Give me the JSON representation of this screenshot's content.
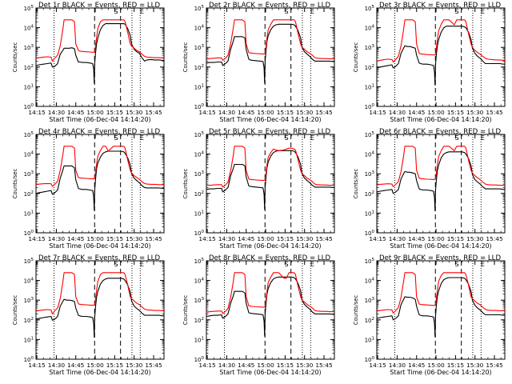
{
  "figure": {
    "background": "#ffffff",
    "axis_color": "#000000"
  },
  "colors": {
    "events": "#000000",
    "lld": "#ff0000"
  },
  "panels": [
    {
      "title": "Det 1r BLACK = Events, RED = LLD",
      "ylabel": "Counts/sec",
      "xlabel": "Start Time (06-Dec-04 14:14:20)"
    },
    {
      "title": "Det 2r BLACK = Events, RED = LLD",
      "ylabel": "Counts/sec",
      "xlabel": "Start Time (06-Dec-04 14:14:20)"
    },
    {
      "title": "Det 3r BLACK = Events, RED = LLD",
      "ylabel": "Counts/sec",
      "xlabel": "Start Time (06-Dec-04 14:14:20)"
    },
    {
      "title": "Det 4r BLACK = Events, RED = LLD",
      "ylabel": "Counts/sec",
      "xlabel": "Start Time (06-Dec-04 14:14:20)"
    },
    {
      "title": "Det 5r BLACK = Events, RED = LLD",
      "ylabel": "Counts/sec",
      "xlabel": "Start Time (06-Dec-04 14:14:20)"
    },
    {
      "title": "Det 6r BLACK = Events, RED = LLD",
      "ylabel": "Counts/sec",
      "xlabel": "Start Time (06-Dec-04 14:14:20)"
    },
    {
      "title": "Det 7r BLACK = Events, RED = LLD",
      "ylabel": "Counts/sec",
      "xlabel": "Start Time (06-Dec-04 14:14:20)"
    },
    {
      "title": "Det 8r BLACK = Events, RED = LLD",
      "ylabel": "Counts/sec",
      "xlabel": "Start Time (06-Dec-04 14:14:20)"
    },
    {
      "title": "Det 9r BLACK = Events, RED = LLD",
      "ylabel": "Counts/sec",
      "xlabel": "Start Time (06-Dec-04 14:14:20)"
    }
  ],
  "chart_data": {
    "type": "line",
    "xticks": [
      "14:15",
      "14:30",
      "14:45",
      "15:00",
      "15:15",
      "15:30",
      "15:45"
    ],
    "xtick_minutes": [
      15,
      30,
      45,
      60,
      75,
      90,
      105
    ],
    "xlim_minutes": [
      14.33,
      113
    ],
    "yscale": "log",
    "ylim": [
      1,
      100000
    ],
    "ytick_exponents": [
      0,
      1,
      2,
      3,
      4,
      5
    ],
    "y_minor_ticks": true,
    "marker_labels": {
      "s": "S",
      "e": "E"
    },
    "vlines": [
      {
        "x": 28.2,
        "style": "dotted"
      },
      {
        "x": 59.5,
        "style": "dashed"
      },
      {
        "x": 79.5,
        "style": "dashed"
      },
      {
        "x": 88.3,
        "style": "dotted"
      },
      {
        "x": 94.7,
        "style": "dotted"
      }
    ],
    "s_marker_x": 76.0,
    "e_marker_x": 96.0,
    "series": [
      {
        "name": "Events",
        "color": "#000000"
      },
      {
        "name": "LLD",
        "color": "#ff0000"
      }
    ],
    "common_x": [
      14.3,
      17,
      20,
      23,
      26,
      27,
      29,
      31,
      33,
      35,
      36,
      38,
      40,
      42,
      44,
      45,
      47,
      48,
      50,
      53,
      56,
      58,
      58.8,
      59.2,
      59.6,
      60.2,
      61,
      62,
      64,
      66,
      68,
      70,
      74,
      76,
      78,
      80,
      82,
      83,
      85,
      87,
      88,
      90,
      92,
      94,
      96,
      98,
      100,
      103,
      106,
      109,
      112,
      113
    ],
    "panels": [
      {
        "events": [
          120,
          130,
          140,
          150,
          160,
          100,
          110,
          150,
          450,
          700,
          900,
          900,
          900,
          950,
          850,
          400,
          180,
          180,
          170,
          170,
          160,
          150,
          80,
          15,
          160,
          500,
          1500,
          3000,
          8000,
          13000,
          16000,
          16000,
          16000,
          16000,
          16000,
          16000,
          16000,
          15000,
          9000,
          4000,
          1500,
          800,
          600,
          500,
          300,
          200,
          230,
          240,
          230,
          230,
          220,
          200
        ],
        "lld": [
          280,
          300,
          320,
          330,
          320,
          200,
          300,
          400,
          1200,
          8000,
          25000,
          25000,
          25000,
          25000,
          20000,
          1500,
          700,
          650,
          620,
          600,
          580,
          560,
          580,
          560,
          600,
          1200,
          3000,
          9000,
          20000,
          25000,
          25000,
          25000,
          25000,
          25000,
          25000,
          25000,
          25000,
          20000,
          6000,
          1500,
          1200,
          900,
          700,
          600,
          450,
          350,
          320,
          310,
          300,
          300,
          290,
          280
        ]
      },
      {
        "events": [
          160,
          170,
          170,
          180,
          180,
          120,
          150,
          200,
          800,
          2000,
          3500,
          3500,
          3500,
          3500,
          3000,
          800,
          250,
          230,
          220,
          210,
          200,
          190,
          90,
          15,
          200,
          600,
          2000,
          4000,
          8000,
          12000,
          14000,
          15000,
          15000,
          15000,
          15000,
          15000,
          14000,
          12000,
          7000,
          3000,
          1000,
          600,
          450,
          350,
          250,
          200,
          200,
          200,
          200,
          200,
          190,
          190
        ],
        "lld": [
          250,
          270,
          280,
          290,
          290,
          220,
          280,
          400,
          1500,
          9000,
          25000,
          25000,
          25000,
          25000,
          20000,
          1500,
          550,
          520,
          500,
          480,
          470,
          460,
          470,
          460,
          500,
          1000,
          3000,
          8000,
          15000,
          25000,
          25000,
          25000,
          25000,
          25000,
          25000,
          25000,
          25000,
          20000,
          5000,
          1500,
          1000,
          800,
          600,
          500,
          400,
          300,
          280,
          270,
          270,
          260,
          260,
          250
        ]
      },
      {
        "events": [
          90,
          100,
          110,
          120,
          130,
          90,
          110,
          150,
          500,
          900,
          1200,
          1100,
          1100,
          1000,
          900,
          400,
          160,
          150,
          140,
          140,
          130,
          120,
          60,
          12,
          130,
          400,
          1200,
          2500,
          6000,
          10000,
          12000,
          12000,
          12000,
          12000,
          12000,
          12000,
          11000,
          10000,
          6000,
          2500,
          900,
          500,
          350,
          280,
          200,
          150,
          150,
          150,
          150,
          150,
          140,
          140
        ],
        "lld": [
          200,
          220,
          240,
          250,
          240,
          180,
          240,
          350,
          1200,
          8000,
          25000,
          25000,
          25000,
          25000,
          20000,
          1500,
          500,
          470,
          450,
          430,
          420,
          410,
          420,
          410,
          450,
          900,
          2500,
          7000,
          15000,
          25000,
          25000,
          25000,
          14000,
          25000,
          25000,
          25000,
          25000,
          20000,
          5000,
          1500,
          1000,
          700,
          550,
          450,
          350,
          280,
          250,
          240,
          230,
          230,
          220,
          220
        ]
      },
      {
        "events": [
          100,
          110,
          120,
          130,
          140,
          90,
          110,
          150,
          600,
          1500,
          2500,
          2500,
          2500,
          2500,
          2000,
          500,
          180,
          170,
          160,
          160,
          150,
          140,
          70,
          14,
          150,
          500,
          1800,
          3500,
          7000,
          11000,
          13000,
          14000,
          14000,
          14000,
          14000,
          14000,
          13000,
          11000,
          6500,
          2800,
          1000,
          600,
          450,
          350,
          250,
          200,
          190,
          190,
          190,
          190,
          180,
          180
        ],
        "lld": [
          280,
          300,
          310,
          320,
          310,
          230,
          300,
          420,
          1500,
          9000,
          25000,
          25000,
          25000,
          25000,
          20000,
          1500,
          650,
          620,
          600,
          580,
          560,
          550,
          560,
          550,
          600,
          1200,
          3000,
          8000,
          15000,
          25000,
          25000,
          14000,
          25000,
          25000,
          25000,
          25000,
          25000,
          20000,
          5000,
          1500,
          1100,
          800,
          650,
          520,
          400,
          320,
          300,
          290,
          290,
          280,
          280,
          270
        ]
      },
      {
        "events": [
          160,
          170,
          170,
          180,
          180,
          120,
          150,
          200,
          800,
          1800,
          3000,
          3000,
          3000,
          3000,
          2500,
          700,
          240,
          230,
          220,
          210,
          200,
          190,
          90,
          15,
          200,
          600,
          2000,
          4000,
          8000,
          12000,
          14000,
          15000,
          15000,
          15000,
          15000,
          15000,
          14000,
          12000,
          7000,
          3000,
          1000,
          600,
          450,
          350,
          260,
          210,
          210,
          210,
          210,
          210,
          200,
          200
        ],
        "lld": [
          250,
          260,
          270,
          280,
          280,
          210,
          270,
          380,
          1400,
          8000,
          25000,
          25000,
          25000,
          25000,
          20000,
          1500,
          550,
          520,
          500,
          480,
          470,
          460,
          470,
          460,
          500,
          1000,
          2800,
          7000,
          12000,
          18000,
          16000,
          15000,
          16000,
          18000,
          20000,
          20000,
          18000,
          16000,
          5000,
          1500,
          1000,
          800,
          600,
          500,
          400,
          300,
          280,
          270,
          270,
          260,
          260,
          250
        ]
      },
      {
        "events": [
          120,
          130,
          140,
          150,
          160,
          100,
          120,
          160,
          550,
          1000,
          1300,
          1200,
          1200,
          1100,
          1000,
          450,
          170,
          160,
          150,
          150,
          140,
          130,
          65,
          13,
          140,
          450,
          1400,
          2800,
          6500,
          10000,
          12000,
          13000,
          13000,
          13000,
          13000,
          13000,
          12000,
          10000,
          6000,
          2600,
          900,
          500,
          380,
          300,
          220,
          170,
          170,
          170,
          170,
          170,
          160,
          160
        ],
        "lld": [
          270,
          290,
          300,
          310,
          300,
          220,
          290,
          400,
          1300,
          8000,
          25000,
          25000,
          25000,
          25000,
          20000,
          1500,
          600,
          570,
          550,
          530,
          520,
          510,
          520,
          510,
          550,
          1100,
          2800,
          7500,
          15000,
          25000,
          25000,
          25000,
          15000,
          25000,
          25000,
          25000,
          25000,
          20000,
          5000,
          1500,
          1100,
          800,
          620,
          500,
          380,
          300,
          280,
          270,
          270,
          260,
          260,
          250
        ]
      },
      {
        "events": [
          110,
          120,
          130,
          140,
          150,
          95,
          110,
          150,
          500,
          850,
          1100,
          1000,
          1000,
          950,
          850,
          400,
          170,
          160,
          150,
          150,
          140,
          130,
          65,
          13,
          140,
          450,
          1400,
          2800,
          6500,
          10000,
          12000,
          13000,
          13000,
          13000,
          13000,
          13000,
          12000,
          10000,
          6000,
          2600,
          900,
          500,
          380,
          300,
          220,
          170,
          170,
          170,
          170,
          170,
          160,
          160
        ],
        "lld": [
          280,
          300,
          320,
          330,
          320,
          200,
          300,
          400,
          1200,
          8000,
          25000,
          25000,
          25000,
          25000,
          20000,
          1500,
          650,
          620,
          600,
          580,
          560,
          550,
          560,
          550,
          600,
          1200,
          3000,
          9000,
          20000,
          25000,
          25000,
          25000,
          25000,
          25000,
          25000,
          25000,
          25000,
          20000,
          6000,
          1500,
          1200,
          900,
          700,
          600,
          450,
          350,
          320,
          310,
          300,
          300,
          290,
          280
        ]
      },
      {
        "events": [
          150,
          160,
          170,
          170,
          180,
          120,
          150,
          200,
          700,
          1600,
          2800,
          2800,
          2800,
          2800,
          2300,
          700,
          230,
          220,
          210,
          200,
          190,
          180,
          85,
          15,
          190,
          600,
          2000,
          4000,
          8000,
          12000,
          14000,
          15000,
          15000,
          15000,
          15000,
          15000,
          14000,
          12000,
          7000,
          3000,
          1000,
          600,
          450,
          350,
          250,
          200,
          200,
          200,
          200,
          200,
          190,
          190
        ],
        "lld": [
          240,
          260,
          270,
          280,
          280,
          210,
          270,
          380,
          1400,
          8000,
          25000,
          25000,
          25000,
          25000,
          20000,
          1500,
          520,
          500,
          480,
          460,
          450,
          440,
          450,
          440,
          480,
          1000,
          2800,
          8000,
          15000,
          25000,
          25000,
          25000,
          13000,
          13000,
          25000,
          25000,
          25000,
          20000,
          5000,
          1500,
          1000,
          800,
          600,
          500,
          400,
          300,
          280,
          270,
          270,
          260,
          260,
          250
        ]
      },
      {
        "events": [
          120,
          130,
          140,
          150,
          160,
          100,
          120,
          160,
          600,
          1100,
          1500,
          1400,
          1400,
          1300,
          1100,
          500,
          180,
          170,
          160,
          160,
          150,
          140,
          70,
          14,
          150,
          500,
          1500,
          3000,
          7000,
          11000,
          13000,
          14000,
          14000,
          14000,
          14000,
          14000,
          13000,
          11000,
          6500,
          2800,
          1000,
          550,
          400,
          320,
          230,
          180,
          180,
          180,
          180,
          180,
          170,
          170
        ],
        "lld": [
          280,
          300,
          320,
          330,
          320,
          220,
          300,
          420,
          1400,
          9000,
          25000,
          25000,
          25000,
          25000,
          20000,
          1500,
          640,
          610,
          590,
          570,
          550,
          540,
          550,
          540,
          590,
          1200,
          3000,
          9000,
          18000,
          25000,
          25000,
          25000,
          25000,
          25000,
          25000,
          25000,
          25000,
          20000,
          6000,
          1500,
          1200,
          900,
          700,
          580,
          440,
          340,
          310,
          300,
          300,
          290,
          290,
          280
        ]
      }
    ]
  }
}
